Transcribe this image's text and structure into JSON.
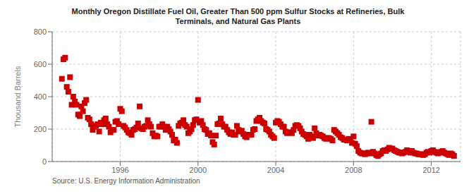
{
  "chart_data": {
    "type": "scatter",
    "title": "Monthly Oregon Distillate Fuel Oil, Greater Than 500 ppm Sulfur Stocks at Refineries, Bulk\nTerminals, and Natural Gas Plants",
    "ylabel": "Thousand Barrels",
    "annotations": [
      "Source: U.S. Energy Information Administration"
    ],
    "color": "#cc0000",
    "marker": "square",
    "grid": true,
    "xlim": [
      1992.5,
      2013.5
    ],
    "xticks": [
      1996,
      2000,
      2004,
      2008,
      2012
    ],
    "ylim": [
      0,
      800
    ],
    "yticks": [
      0,
      200,
      400,
      600,
      800
    ],
    "x": [
      1993.0,
      1993.083,
      1993.167,
      1993.25,
      1993.333,
      1993.417,
      1993.5,
      1993.583,
      1993.667,
      1993.75,
      1993.833,
      1993.917,
      1994.0,
      1994.083,
      1994.167,
      1994.25,
      1994.333,
      1994.417,
      1994.5,
      1994.583,
      1994.667,
      1994.75,
      1994.833,
      1994.917,
      1995.0,
      1995.083,
      1995.167,
      1995.25,
      1995.333,
      1995.417,
      1995.5,
      1995.583,
      1995.667,
      1995.75,
      1995.833,
      1995.917,
      1996.0,
      1996.083,
      1996.167,
      1996.25,
      1996.333,
      1996.417,
      1996.5,
      1996.583,
      1996.667,
      1996.75,
      1996.833,
      1996.917,
      1997.0,
      1997.083,
      1997.167,
      1997.25,
      1997.333,
      1997.417,
      1997.5,
      1997.583,
      1997.667,
      1997.75,
      1997.833,
      1997.917,
      1998.0,
      1998.083,
      1998.167,
      1998.25,
      1998.333,
      1998.417,
      1998.5,
      1998.583,
      1998.667,
      1998.75,
      1998.833,
      1998.917,
      1999.0,
      1999.083,
      1999.167,
      1999.25,
      1999.333,
      1999.417,
      1999.5,
      1999.583,
      1999.667,
      1999.75,
      1999.833,
      1999.917,
      2000.0,
      2000.083,
      2000.167,
      2000.25,
      2000.333,
      2000.417,
      2000.5,
      2000.583,
      2000.667,
      2000.75,
      2000.833,
      2000.917,
      2001.0,
      2001.083,
      2001.167,
      2001.25,
      2001.333,
      2001.417,
      2001.5,
      2001.583,
      2001.667,
      2001.75,
      2001.833,
      2001.917,
      2002.0,
      2002.083,
      2002.167,
      2002.25,
      2002.333,
      2002.417,
      2002.5,
      2002.583,
      2002.667,
      2002.75,
      2002.833,
      2002.917,
      2003.0,
      2003.083,
      2003.167,
      2003.25,
      2003.333,
      2003.417,
      2003.5,
      2003.583,
      2003.667,
      2003.75,
      2003.833,
      2003.917,
      2004.0,
      2004.083,
      2004.167,
      2004.25,
      2004.333,
      2004.417,
      2004.5,
      2004.583,
      2004.667,
      2004.75,
      2004.833,
      2004.917,
      2005.0,
      2005.083,
      2005.167,
      2005.25,
      2005.333,
      2005.417,
      2005.5,
      2005.583,
      2005.667,
      2005.75,
      2005.833,
      2005.917,
      2006.0,
      2006.083,
      2006.167,
      2006.25,
      2006.333,
      2006.417,
      2006.5,
      2006.583,
      2006.667,
      2006.75,
      2006.833,
      2006.917,
      2007.0,
      2007.083,
      2007.167,
      2007.25,
      2007.333,
      2007.417,
      2007.5,
      2007.583,
      2007.667,
      2007.75,
      2007.833,
      2007.917,
      2008.0,
      2008.083,
      2008.167,
      2008.25,
      2008.333,
      2008.417,
      2008.5,
      2008.583,
      2008.667,
      2008.75,
      2008.833,
      2008.917,
      2009.0,
      2009.083,
      2009.167,
      2009.25,
      2009.333,
      2009.417,
      2009.5,
      2009.583,
      2009.667,
      2009.75,
      2009.833,
      2009.917,
      2010.0,
      2010.083,
      2010.167,
      2010.25,
      2010.333,
      2010.417,
      2010.5,
      2010.583,
      2010.667,
      2010.75,
      2010.833,
      2010.917,
      2011.0,
      2011.083,
      2011.167,
      2011.25,
      2011.333,
      2011.417,
      2011.5,
      2011.583,
      2011.667,
      2011.75,
      2011.833,
      2011.917,
      2012.0,
      2012.083,
      2012.167,
      2012.25,
      2012.333,
      2012.417,
      2012.5,
      2012.583,
      2012.667,
      2012.75,
      2012.833,
      2012.917,
      2013.0,
      2013.083,
      2013.167
    ],
    "values": [
      510,
      630,
      640,
      460,
      430,
      520,
      350,
      400,
      370,
      350,
      290,
      280,
      340,
      310,
      360,
      380,
      270,
      260,
      230,
      195,
      215,
      220,
      230,
      185,
      240,
      230,
      255,
      265,
      230,
      215,
      180,
      195,
      195,
      245,
      250,
      230,
      325,
      310,
      220,
      210,
      195,
      180,
      175,
      165,
      195,
      200,
      210,
      235,
      340,
      205,
      200,
      215,
      220,
      255,
      230,
      215,
      175,
      155,
      160,
      155,
      215,
      215,
      230,
      215,
      195,
      215,
      200,
      185,
      165,
      130,
      135,
      115,
      220,
      235,
      240,
      255,
      225,
      215,
      175,
      185,
      200,
      225,
      255,
      260,
      380,
      240,
      250,
      225,
      200,
      195,
      170,
      175,
      160,
      120,
      105,
      160,
      230,
      235,
      265,
      230,
      215,
      215,
      195,
      180,
      170,
      180,
      165,
      165,
      220,
      195,
      185,
      190,
      170,
      155,
      150,
      165,
      165,
      165,
      195,
      200,
      250,
      260,
      270,
      250,
      240,
      235,
      200,
      195,
      185,
      165,
      155,
      145,
      240,
      250,
      245,
      230,
      215,
      215,
      185,
      175,
      180,
      180,
      175,
      195,
      220,
      225,
      220,
      205,
      185,
      170,
      165,
      155,
      140,
      165,
      155,
      145,
      205,
      175,
      160,
      165,
      160,
      155,
      145,
      140,
      145,
      145,
      140,
      130,
      195,
      185,
      175,
      165,
      150,
      145,
      135,
      135,
      130,
      140,
      135,
      115,
      155,
      110,
      95,
      65,
      55,
      50,
      50,
      45,
      50,
      55,
      50,
      245,
      60,
      50,
      40,
      35,
      45,
      50,
      65,
      70,
      65,
      75,
      85,
      80,
      80,
      70,
      65,
      60,
      55,
      55,
      50,
      55,
      60,
      70,
      65,
      55,
      65,
      55,
      50,
      50,
      45,
      45,
      45,
      40,
      45,
      55,
      60,
      55,
      65,
      70,
      60,
      55,
      50,
      55,
      60,
      65,
      55,
      50,
      45,
      40,
      50,
      45,
      35
    ]
  }
}
